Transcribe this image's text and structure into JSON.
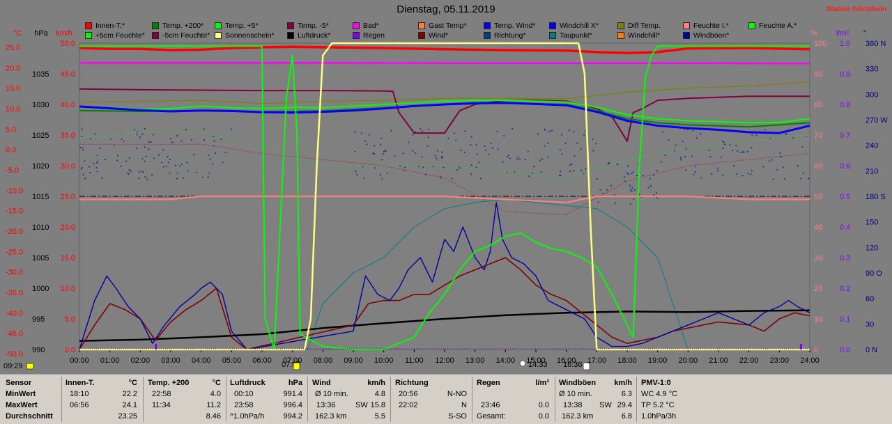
{
  "title": "Dienstag, 05.11.2019",
  "station": "Station Göritzhain",
  "legend": [
    {
      "label": "Innen-T.*",
      "color": "#ff0000"
    },
    {
      "label": "Temp. +200*",
      "color": "#008000"
    },
    {
      "label": "Temp. +5*",
      "color": "#00ff00"
    },
    {
      "label": "Temp. -5*",
      "color": "#800040"
    },
    {
      "label": "Bad*",
      "color": "#ff00ff"
    },
    {
      "label": "Gast Temp*",
      "color": "#ff8040"
    },
    {
      "label": "Temp. Wind*",
      "color": "#0000ff"
    },
    {
      "label": "Windchill X*",
      "color": "#0000ff"
    },
    {
      "label": "Diff Temp.",
      "color": "#808000"
    },
    {
      "label": "Feuchte I.*",
      "color": "#ff8080"
    },
    {
      "label": "Feuchte A.*",
      "color": "#00ff00"
    },
    {
      "label": "+5cm Feuchte*",
      "color": "#00ff00"
    },
    {
      "label": "-5cm Feuchte*",
      "color": "#800040"
    },
    {
      "label": "Sonnenschein*",
      "color": "#ffff80"
    },
    {
      "label": "Luftdruck*",
      "color": "#000000"
    },
    {
      "label": "Regen",
      "color": "#8000ff"
    },
    {
      "label": "Wind*",
      "color": "#800000"
    },
    {
      "label": "Richtung*",
      "color": "#004080"
    },
    {
      "label": "Taupunkt*",
      "color": "#008080"
    },
    {
      "label": "Windchill*",
      "color": "#ff8000"
    },
    {
      "label": "Windböen*",
      "color": "#0000a0"
    }
  ],
  "chart_data": {
    "type": "line",
    "axes": {
      "temp_c": {
        "unit": "°C",
        "ticks": [
          "25.0",
          "20.0",
          "15.0",
          "10.0",
          "5.0",
          "0.0",
          "-5.0",
          "-10.0",
          "-15.0",
          "-20.0",
          "-25.0",
          "-30.0",
          "-35.0",
          "-40.0",
          "-45.0",
          "-50.0"
        ],
        "color": "#ff0000"
      },
      "pressure_hpa": {
        "unit": "hPa",
        "ticks": [
          "1035",
          "1030",
          "1025",
          "1020",
          "1015",
          "1010",
          "1005",
          "1000",
          "995",
          "990"
        ],
        "color": "#000000"
      },
      "wind_kmh": {
        "unit": "km/h",
        "ticks": [
          "50.0",
          "45.0",
          "40.0",
          "35.0",
          "30.0",
          "25.0",
          "20.0",
          "15.0",
          "10.0",
          "5.0",
          "0.0"
        ],
        "color": "#ff0000"
      },
      "humidity_pct": {
        "unit": "%",
        "ticks": [
          "100",
          "90",
          "80",
          "70",
          "60",
          "50",
          "40",
          "30",
          "20",
          "10",
          "0"
        ],
        "color": "#ff8080"
      },
      "rain_lm2": {
        "unit": "l/m²",
        "ticks": [
          "1.0",
          "0.9",
          "0.8",
          "0.7",
          "0.6",
          "0.5",
          "0.4",
          "0.3",
          "0.2",
          "0.1",
          "0.0"
        ],
        "color": "#8000ff"
      },
      "direction": {
        "unit": "°",
        "ticks": [
          "360 N",
          "330",
          "300",
          "270 W",
          "240",
          "210",
          "180 S",
          "150",
          "120",
          "90 O",
          "60",
          "30",
          "0 N"
        ],
        "color": "#000080"
      },
      "time": {
        "ticks": [
          "00:00",
          "01:00",
          "02:00",
          "03:00",
          "04:00",
          "05:00",
          "06:00",
          "07:00",
          "08:00",
          "09:00",
          "10:00",
          "11:00",
          "12:00",
          "13:00",
          "14:00",
          "15:00",
          "16:00",
          "17:00",
          "18:00",
          "19:00",
          "20:00",
          "21:00",
          "22:00",
          "23:00",
          "24:00"
        ]
      }
    },
    "sun_markers": {
      "sunrise": "07:07",
      "sunset": "16:36",
      "noon": "14:33"
    },
    "series": [
      {
        "name": "Innen-T.*",
        "axis": "temp_c",
        "x": [
          0,
          1,
          2,
          3,
          4,
          5,
          6,
          7,
          8,
          10,
          12,
          14,
          16,
          17,
          18,
          19,
          20,
          22,
          24
        ],
        "y": [
          23.8,
          23.6,
          23.6,
          23.3,
          23.4,
          23.8,
          24.0,
          24.1,
          24.0,
          23.8,
          23.5,
          23.3,
          23.2,
          22.8,
          22.6,
          22.8,
          23.7,
          23.8,
          23.5
        ]
      },
      {
        "name": "Bad*",
        "axis": "temp_c",
        "x": [
          0,
          4,
          8,
          12,
          16,
          20,
          24
        ],
        "y": [
          20.2,
          20.2,
          20.2,
          20.1,
          20.1,
          20.1,
          20.0
        ]
      },
      {
        "name": "Feuchte I.*",
        "axis": "humidity_pct",
        "x": [
          0,
          3,
          4,
          5,
          6,
          7,
          8,
          10,
          12,
          14,
          16,
          17,
          18,
          19,
          20,
          22,
          24
        ],
        "y": [
          49,
          49,
          50,
          50,
          50,
          50,
          50,
          50,
          50,
          49,
          48,
          50,
          50,
          50,
          50,
          49,
          49
        ]
      },
      {
        "name": "Temp. -5*",
        "axis": "temp_c",
        "x": [
          0,
          2,
          4,
          6,
          8,
          10,
          10.3,
          10.5,
          10.8,
          11,
          12,
          12.5,
          13,
          14,
          15,
          16,
          17,
          17.5,
          18,
          18.2,
          18.5,
          19,
          20,
          22,
          24
        ],
        "y": [
          13.8,
          13.6,
          13.5,
          13.4,
          13.4,
          13.3,
          13.2,
          8,
          5,
          3,
          3,
          8.5,
          10,
          11,
          11,
          10.8,
          9,
          7,
          1,
          8,
          9,
          11,
          11.5,
          12,
          12
        ]
      },
      {
        "name": "Diff Temp.",
        "axis": "temp_c",
        "x": [
          0,
          2,
          4,
          6,
          8,
          10,
          12,
          14,
          16,
          18,
          20,
          22,
          24
        ],
        "y": [
          10.5,
          10.8,
          11,
          10.2,
          10.8,
          11,
          11.5,
          11.5,
          11.4,
          13,
          14,
          14.5,
          15.5
        ]
      },
      {
        "name": "Temp. +5*",
        "axis": "temp_c",
        "x": [
          0,
          2,
          3,
          4,
          5,
          6,
          7,
          8,
          9,
          10,
          11,
          12,
          13,
          14,
          15,
          16,
          17,
          18,
          19,
          20,
          21,
          22,
          23,
          24
        ],
        "y": [
          9.5,
          8.8,
          9.0,
          9.6,
          9.2,
          9.0,
          9.3,
          9.2,
          9.6,
          10.0,
          10.4,
          10.8,
          11.0,
          11.0,
          10.8,
          10.6,
          9.3,
          7.5,
          6.5,
          6.0,
          5.8,
          5.5,
          5.6,
          6.5
        ]
      },
      {
        "name": "Temp. +200*",
        "axis": "temp_c",
        "x": [
          0,
          2,
          4,
          6,
          8,
          10,
          12,
          14,
          16,
          17,
          18,
          19,
          20,
          22,
          24
        ],
        "y": [
          8.5,
          8.3,
          8.5,
          8.2,
          8.4,
          9.2,
          10.0,
          10.3,
          10.0,
          8.5,
          6.5,
          5.5,
          5.0,
          4.5,
          5.5
        ]
      },
      {
        "name": "Temp. Wind*",
        "axis": "temp_c",
        "x": [
          0,
          2,
          3,
          4,
          5,
          6,
          7,
          8,
          9,
          10,
          11,
          12,
          13,
          14,
          15,
          16,
          17,
          18,
          19,
          20,
          21,
          22,
          23,
          24
        ],
        "y": [
          9.5,
          8.6,
          8.3,
          8.5,
          8.4,
          8.1,
          8.0,
          8.2,
          8.5,
          9.0,
          9.6,
          10.0,
          10.3,
          10.4,
          10.1,
          9.8,
          8.2,
          6.0,
          4.8,
          4.2,
          3.8,
          3.2,
          3.0,
          4.8
        ]
      },
      {
        "name": "Sonnenschein*",
        "axis": "wind_kmh",
        "x": [
          0,
          7.4,
          7.6,
          7.8,
          8.0,
          8.3,
          16.4,
          16.6,
          16.8,
          17.0,
          24
        ],
        "y": [
          0,
          0,
          5,
          30,
          48,
          50,
          50,
          45,
          20,
          0,
          0
        ]
      },
      {
        "name": "Feuchte A.*",
        "axis": "humidity_pct",
        "x": [
          0,
          6.0,
          6.1,
          6.4,
          6.8,
          7.0,
          7.15,
          7.25,
          8.0,
          9,
          10,
          11,
          11.5,
          12,
          12.5,
          13,
          13.5,
          14,
          14.5,
          15,
          15.5,
          16,
          16.5,
          17,
          17.5,
          18,
          18.2,
          18.4,
          18.6,
          18.8,
          19,
          24
        ],
        "y": [
          99,
          99,
          10,
          0,
          82,
          96,
          70,
          5,
          1,
          0,
          0,
          4,
          12,
          18,
          26,
          32,
          34,
          37,
          38,
          35,
          33,
          32,
          30,
          27,
          18,
          8,
          4,
          60,
          89,
          96,
          99,
          99
        ]
      },
      {
        "name": "Luftdruck*",
        "axis": "pressure_hpa",
        "x": [
          0,
          2,
          4,
          6,
          8,
          10,
          12,
          14,
          16,
          18,
          20,
          22,
          24
        ],
        "y": [
          991.4,
          991.6,
          992.0,
          992.5,
          993.5,
          994.3,
          995.0,
          995.6,
          996.0,
          996.2,
          996.1,
          996.3,
          996.4
        ]
      },
      {
        "name": "Wind*",
        "axis": "wind_kmh",
        "x": [
          0,
          0.5,
          1.0,
          1.5,
          2.0,
          2.5,
          3.0,
          3.5,
          4.0,
          4.5,
          5.0,
          5.5,
          9.0,
          9.5,
          10.0,
          10.5,
          11.0,
          11.5,
          12.0,
          12.5,
          13.0,
          13.5,
          14.0,
          14.5,
          15.0,
          15.5,
          16.0,
          16.5,
          17.0,
          17.5,
          18.0,
          18.5,
          19.0,
          19.5,
          20.0,
          21.0,
          22.0,
          22.5,
          23.0,
          23.5,
          24.0
        ],
        "y": [
          0,
          4,
          7.5,
          6.5,
          5,
          1.5,
          4.5,
          6.5,
          8,
          10,
          2,
          0,
          4,
          7.5,
          8,
          8,
          9,
          9,
          10.5,
          12,
          13,
          14,
          15,
          13,
          10.5,
          9,
          8,
          6,
          4,
          2,
          1,
          1.5,
          2,
          3,
          3.5,
          4.5,
          4,
          3,
          5,
          6,
          5.5
        ]
      },
      {
        "name": "Windböen*",
        "axis": "wind_kmh",
        "x": [
          0,
          0.5,
          0.9,
          1.2,
          1.6,
          2.0,
          2.4,
          2.8,
          3.3,
          3.8,
          4.0,
          4.3,
          4.7,
          5.0,
          5.5,
          9.0,
          9.4,
          9.8,
          10.2,
          10.5,
          10.8,
          11.2,
          11.6,
          12.0,
          12.3,
          12.6,
          13.0,
          13.3,
          13.5,
          13.7,
          13.9,
          14.2,
          14.6,
          15.0,
          15.4,
          15.8,
          16.2,
          16.6,
          17.0,
          17.5,
          18.0,
          18.5,
          19.0,
          19.5,
          20.0,
          20.5,
          21.0,
          21.5,
          22.0,
          22.5,
          23.0,
          23.3,
          23.6,
          24.0
        ],
        "y": [
          0,
          8,
          12,
          10,
          7,
          5,
          1,
          4,
          7,
          9,
          10,
          11,
          9,
          3,
          0,
          3,
          12,
          9,
          8,
          10,
          13,
          15,
          11,
          18,
          16,
          20,
          15,
          13,
          16,
          24,
          18,
          15,
          14,
          12,
          8,
          7,
          6,
          5,
          2,
          0.5,
          0.5,
          1,
          2,
          3,
          4,
          5,
          6,
          5,
          4,
          6,
          7,
          8,
          7,
          6
        ]
      },
      {
        "name": "Taupunkt*",
        "axis": "humidity_pct",
        "x": [
          0,
          7.5,
          8.0,
          9,
          10,
          11,
          12,
          13,
          14,
          15,
          16,
          17,
          18,
          19,
          20,
          24
        ],
        "y": [
          0,
          0,
          15,
          25,
          30,
          40,
          46,
          48,
          49,
          48,
          47,
          46,
          40,
          30,
          0,
          0
        ]
      }
    ],
    "scatter_series": [
      {
        "name": "Richtung*",
        "axis": "direction",
        "description_range": "points scattered 180°–270° throughout the day"
      }
    ]
  },
  "stats": {
    "headers": {
      "sensor": "Sensor",
      "innen": "Innen-T.",
      "innen_unit": "°C",
      "temp200": "Temp. +200",
      "temp200_unit": "°C",
      "luft": "Luftdruck",
      "luft_unit": "hPa",
      "wind": "Wind",
      "wind_unit": "km/h",
      "richtung": "Richtung",
      "regen": "Regen",
      "regen_unit": "l/m²",
      "boeen": "Windböen",
      "boeen_unit": "km/h",
      "pmv": "PMV-1:0"
    },
    "row_labels": [
      "MinWert",
      "MaxWert",
      "Durchschnitt"
    ],
    "innen": [
      [
        "18:10",
        "22.2"
      ],
      [
        "06:56",
        "24.1"
      ],
      [
        "",
        "23.25"
      ]
    ],
    "temp200": [
      [
        "22:58",
        "4.0"
      ],
      [
        "11:34",
        "11.2"
      ],
      [
        "",
        "8.46"
      ]
    ],
    "luft": [
      [
        "00:10",
        "991.4"
      ],
      [
        "23:58",
        "996.4"
      ],
      [
        "^1.0hPa/h",
        "994.2"
      ]
    ],
    "wind": [
      [
        "Ø 10 min.",
        "",
        "4.8"
      ],
      [
        "13:36",
        "SW",
        "15.8"
      ],
      [
        "162.3 km",
        "",
        "5.5"
      ]
    ],
    "richtung": [
      [
        "20:56",
        "N-NO"
      ],
      [
        "22:02",
        "N"
      ],
      [
        "",
        "S-SO"
      ]
    ],
    "regen": [
      [
        "",
        ""
      ],
      [
        "23:46",
        "0.0"
      ],
      [
        "Gesamt:",
        "0.0"
      ]
    ],
    "boeen": [
      [
        "Ø 10 min.",
        "",
        "6.3"
      ],
      [
        "13:38",
        "SW",
        "29.4"
      ],
      [
        "162.3 km",
        "",
        "6.8"
      ]
    ],
    "pmv": [
      "WC 4.9 °C",
      "TP 5.2 °C",
      "1.0hPa/3h"
    ]
  }
}
